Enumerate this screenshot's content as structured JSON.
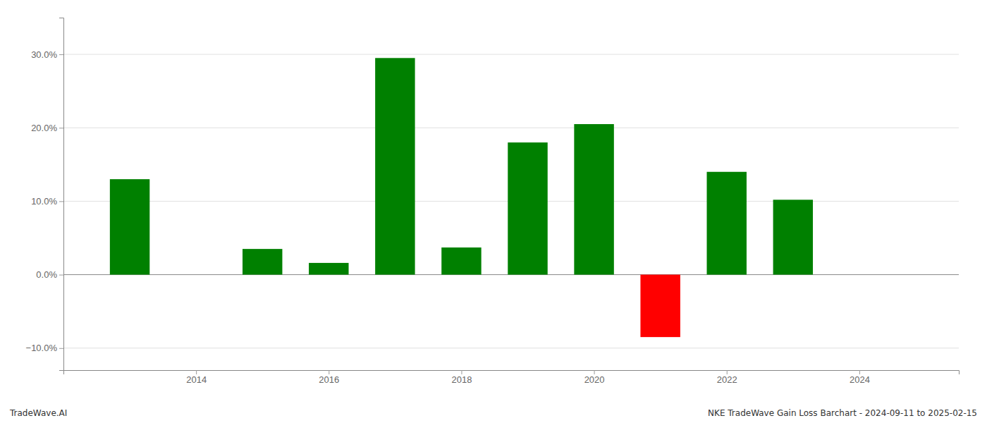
{
  "chart_data": {
    "type": "bar",
    "x": [
      2013,
      2015,
      2016,
      2017,
      2018,
      2019,
      2020,
      2021,
      2022,
      2023
    ],
    "values": [
      13.0,
      3.5,
      1.6,
      29.5,
      3.7,
      18.0,
      20.5,
      -8.5,
      14.0,
      10.2
    ],
    "colors": [
      "#008000",
      "#008000",
      "#008000",
      "#008000",
      "#008000",
      "#008000",
      "#008000",
      "#ff0000",
      "#008000",
      "#008000"
    ],
    "xlim": [
      2012.0,
      2025.5
    ],
    "ylim": [
      -13.0,
      35.0
    ],
    "xticks": [
      2014,
      2016,
      2018,
      2020,
      2022,
      2024
    ],
    "yticks": [
      {
        "value": -10.0,
        "label": "−10.0%"
      },
      {
        "value": 0.0,
        "label": "0.0%"
      },
      {
        "value": 10.0,
        "label": "10.0%"
      },
      {
        "value": 20.0,
        "label": "20.0%"
      },
      {
        "value": 30.0,
        "label": "30.0%"
      }
    ],
    "grid": true,
    "annotations": [
      "TradeWave.AI",
      "NKE TradeWave Gain Loss Barchart - 2024-09-11 to 2025-02-15"
    ]
  }
}
